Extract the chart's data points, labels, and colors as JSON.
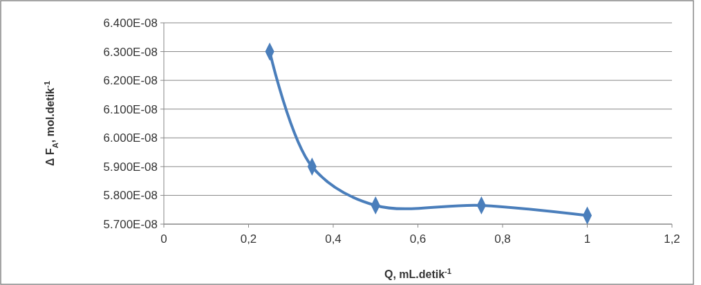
{
  "chart_data": {
    "type": "line",
    "xlabel": "Q, mL.detik$^{-1}$",
    "ylabel": "Δ F$_{A}$, mol.detik$^{-1}$",
    "x": [
      0.25,
      0.35,
      0.5,
      0.75,
      1
    ],
    "series": [
      {
        "color": "#4a7ebb",
        "values": [
          6.3e-08,
          5.9e-08,
          5.765e-08,
          5.765e-08,
          5.73e-08
        ]
      }
    ],
    "xlim": [
      0,
      1.2
    ],
    "xticks": [
      0,
      {
        "value": 0.2,
        "label": "0,2"
      },
      {
        "value": 0.4,
        "label": "0,4"
      },
      {
        "value": 0.6,
        "label": "0,6"
      },
      {
        "value": 0.8,
        "label": "0,8"
      },
      1,
      {
        "value": 1.2,
        "label": "1,2"
      }
    ],
    "ylim": [
      5.7e-08,
      6.4e-08
    ],
    "yticks": [
      {
        "value": 5.7e-08,
        "label": "5.700E-08"
      },
      {
        "value": 5.8e-08,
        "label": "5.800E-08"
      },
      {
        "value": 5.9e-08,
        "label": "5.900E-08"
      },
      {
        "value": 6e-08,
        "label": "6.000E-08"
      },
      {
        "value": 6.1e-08,
        "label": "6.100E-08"
      },
      {
        "value": 6.2e-08,
        "label": "6.200E-08"
      },
      {
        "value": 6.3e-08,
        "label": "6.300E-08"
      },
      {
        "value": 6.4e-08,
        "label": "6.400E-08"
      }
    ],
    "grid": "y",
    "marker": "diamond",
    "line_style": "solid"
  }
}
